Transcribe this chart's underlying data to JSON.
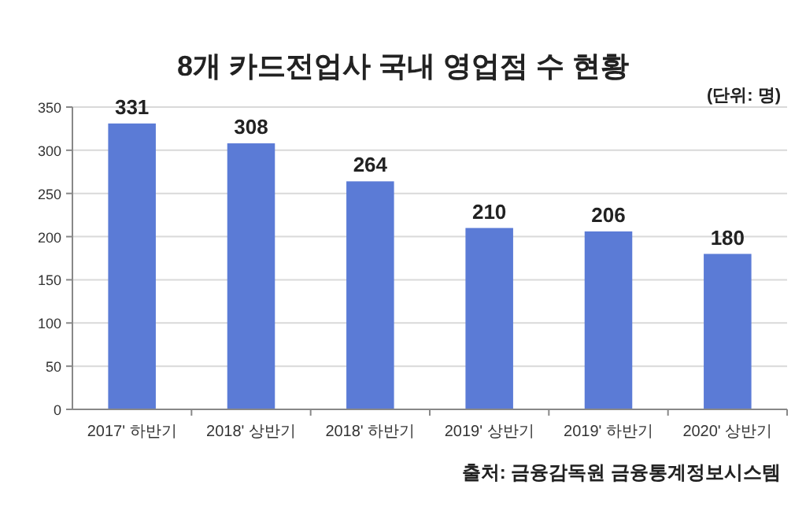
{
  "chart_data": {
    "type": "bar",
    "title": "8개 카드전업사 국내 영업점 수 현황",
    "categories": [
      "2017' 하반기",
      "2018' 상반기",
      "2018' 하반기",
      "2019' 상반기",
      "2019' 하반기",
      "2020' 상반기"
    ],
    "values": [
      331,
      308,
      264,
      210,
      206,
      180
    ],
    "color": "#5b7bd6",
    "ylim": [
      0,
      350
    ],
    "yticks": [
      0,
      50,
      100,
      150,
      200,
      250,
      300,
      350
    ],
    "grid": "y",
    "data_labels": true,
    "annotations": [
      "(단위: 명)",
      "출처: 금융감독원 금융통계정보시스템"
    ]
  }
}
